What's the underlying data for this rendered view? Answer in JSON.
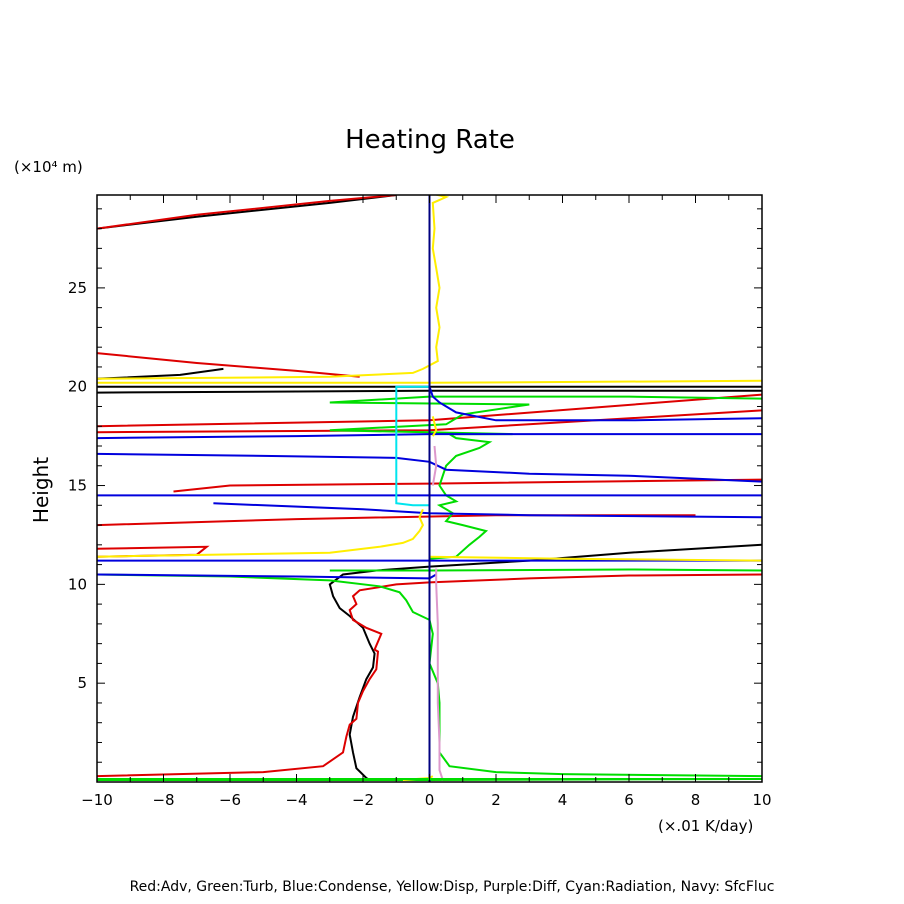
{
  "chart_data": {
    "type": "line",
    "title": "Heating Rate",
    "ylabel": "Height",
    "y_unit": "(×10⁴ m)",
    "x_unit": "(×.01 K/day)",
    "legend_text": "Red:Adv, Green:Turb, Blue:Condense, Yellow:Disp, Purple:Diff, Cyan:Radiation, Navy: SfcFluc",
    "xlim": [
      -10,
      10
    ],
    "ylim": [
      0,
      29.7
    ],
    "x_ticks": [
      -10,
      -8,
      -6,
      -4,
      -2,
      0,
      2,
      4,
      6,
      8,
      10
    ],
    "y_ticks": [
      5,
      10,
      15,
      20,
      25
    ],
    "grid": false,
    "legend_position": "bottom",
    "series": [
      {
        "color": "#000000",
        "points": [
          [
            -1.8,
            0.1
          ],
          [
            -1.9,
            0.2
          ],
          [
            -2.2,
            0.7
          ],
          [
            -2.3,
            1.5
          ],
          [
            -2.4,
            2.4
          ],
          [
            -2.3,
            3.3
          ],
          [
            -2.1,
            4.3
          ],
          [
            -1.9,
            5.2
          ],
          [
            -1.7,
            5.8
          ],
          [
            -1.65,
            6.5
          ],
          [
            -1.8,
            7.0
          ],
          [
            -2.0,
            7.8
          ],
          [
            -2.4,
            8.4
          ],
          [
            -2.7,
            8.8
          ],
          [
            -2.9,
            9.4
          ],
          [
            -3.0,
            10.0
          ],
          [
            -2.6,
            10.5
          ],
          [
            -1.6,
            10.7
          ],
          [
            0,
            10.9
          ],
          [
            3,
            11.2
          ],
          [
            6,
            11.6
          ],
          [
            10,
            12.0
          ]
        ]
      },
      {
        "color": "#000000",
        "points": [
          [
            -10,
            20.4
          ],
          [
            -7.5,
            20.6
          ],
          [
            -6.2,
            20.9
          ]
        ]
      },
      {
        "color": "#000000",
        "points": [
          [
            -10,
            28.0
          ],
          [
            -7,
            28.6
          ],
          [
            -3,
            29.3
          ],
          [
            -1,
            29.7
          ]
        ]
      },
      {
        "color": "#000000",
        "points": [
          [
            -10,
            20.0
          ],
          [
            0,
            20.0
          ],
          [
            10,
            20.0
          ]
        ]
      },
      {
        "color": "#000000",
        "points": [
          [
            -10,
            19.7
          ],
          [
            0,
            19.8
          ],
          [
            10,
            19.8
          ]
        ]
      },
      {
        "color": "#dd0000",
        "points": [
          [
            -10,
            0.3
          ],
          [
            -5,
            0.5
          ],
          [
            -3.2,
            0.8
          ],
          [
            -2.6,
            1.5
          ],
          [
            -2.5,
            2.3
          ],
          [
            -2.4,
            2.9
          ],
          [
            -2.2,
            3.2
          ],
          [
            -2.15,
            4.0
          ],
          [
            -2.0,
            4.6
          ],
          [
            -1.8,
            5.2
          ],
          [
            -1.6,
            5.7
          ],
          [
            -1.55,
            6.6
          ],
          [
            -1.65,
            6.7
          ],
          [
            -1.45,
            7.5
          ],
          [
            -1.9,
            7.8
          ],
          [
            -2.3,
            8.2
          ],
          [
            -2.4,
            8.7
          ],
          [
            -2.2,
            9.0
          ],
          [
            -2.3,
            9.4
          ],
          [
            -2.1,
            9.7
          ],
          [
            -1.0,
            10.0
          ],
          [
            0,
            10.1
          ],
          [
            3,
            10.3
          ],
          [
            6,
            10.45
          ],
          [
            10,
            10.5
          ]
        ]
      },
      {
        "color": "#dd0000",
        "points": [
          [
            -10,
            11.8
          ],
          [
            -6.7,
            11.9
          ],
          [
            -7.0,
            11.5
          ],
          [
            -10,
            11.4
          ]
        ]
      },
      {
        "color": "#dd0000",
        "points": [
          [
            -10,
            13.0
          ],
          [
            -4,
            13.3
          ],
          [
            2,
            13.5
          ],
          [
            8,
            13.5
          ]
        ]
      },
      {
        "color": "#dd0000",
        "points": [
          [
            -7.7,
            14.7
          ],
          [
            -6,
            15.0
          ],
          [
            0,
            15.1
          ],
          [
            10,
            15.3
          ]
        ]
      },
      {
        "color": "#dd0000",
        "points": [
          [
            -10,
            17.7
          ],
          [
            0,
            17.8
          ],
          [
            10,
            18.8
          ]
        ]
      },
      {
        "color": "#dd0000",
        "points": [
          [
            -10,
            18.0
          ],
          [
            0,
            18.3
          ],
          [
            10,
            19.6
          ]
        ]
      },
      {
        "color": "#dd0000",
        "points": [
          [
            -10,
            21.7
          ],
          [
            -7,
            21.2
          ],
          [
            -4,
            20.8
          ],
          [
            -2.1,
            20.5
          ]
        ]
      },
      {
        "color": "#dd0000",
        "points": [
          [
            -10,
            28.0
          ],
          [
            -7,
            28.7
          ],
          [
            -3,
            29.4
          ],
          [
            -1,
            29.7
          ]
        ]
      },
      {
        "color": "#00dd00",
        "points": [
          [
            -10,
            0.1
          ],
          [
            0,
            0.1
          ],
          [
            10,
            0.15
          ]
        ]
      },
      {
        "color": "#00dd00",
        "points": [
          [
            10,
            0.3
          ],
          [
            4,
            0.4
          ],
          [
            2,
            0.5
          ],
          [
            0.6,
            0.8
          ],
          [
            0.3,
            1.5
          ],
          [
            0.3,
            4.0
          ],
          [
            0.25,
            5.0
          ],
          [
            0,
            6.0
          ],
          [
            0.1,
            7.5
          ],
          [
            0,
            8.2
          ],
          [
            -0.5,
            8.6
          ],
          [
            -0.7,
            9.2
          ],
          [
            -0.9,
            9.6
          ],
          [
            -1.5,
            9.9
          ],
          [
            -3,
            10.2
          ],
          [
            -6,
            10.4
          ],
          [
            -10,
            10.5
          ]
        ]
      },
      {
        "color": "#00dd00",
        "points": [
          [
            -3,
            10.7
          ],
          [
            0,
            10.7
          ],
          [
            6,
            10.75
          ],
          [
            10,
            10.7
          ]
        ]
      },
      {
        "color": "#00dd00",
        "points": [
          [
            0,
            11.3
          ],
          [
            0.8,
            11.4
          ],
          [
            1.2,
            12.0
          ],
          [
            1.5,
            12.4
          ],
          [
            1.7,
            12.7
          ],
          [
            1.0,
            13.0
          ],
          [
            0.5,
            13.2
          ],
          [
            0.7,
            13.6
          ],
          [
            0.3,
            14.0
          ],
          [
            0.8,
            14.2
          ],
          [
            0.5,
            14.5
          ],
          [
            0.3,
            15.0
          ],
          [
            0.5,
            16.0
          ],
          [
            0.8,
            16.5
          ],
          [
            1.5,
            16.9
          ],
          [
            1.8,
            17.2
          ],
          [
            0.8,
            17.4
          ],
          [
            0.6,
            17.6
          ],
          [
            2.5,
            17.6
          ],
          [
            -3,
            17.8
          ],
          [
            0.5,
            18.1
          ],
          [
            1,
            18.6
          ],
          [
            3,
            19.1
          ],
          [
            -3,
            19.2
          ],
          [
            0,
            19.5
          ],
          [
            6,
            19.5
          ],
          [
            10,
            19.4
          ]
        ]
      },
      {
        "color": "#0000dd",
        "points": [
          [
            10,
            17.6
          ],
          [
            4,
            17.6
          ],
          [
            0,
            17.6
          ],
          [
            -4,
            17.5
          ],
          [
            -10,
            17.4
          ]
        ]
      },
      {
        "color": "#0000dd",
        "points": [
          [
            10,
            18.4
          ],
          [
            6,
            18.3
          ],
          [
            2,
            18.3
          ],
          [
            0.8,
            18.7
          ],
          [
            0.3,
            19.2
          ],
          [
            0.1,
            19.5
          ],
          [
            0,
            20.0
          ]
        ]
      },
      {
        "color": "#0000dd",
        "points": [
          [
            -10,
            16.6
          ],
          [
            -5,
            16.5
          ],
          [
            -1,
            16.4
          ],
          [
            0,
            16.2
          ],
          [
            0.5,
            15.8
          ],
          [
            3,
            15.6
          ],
          [
            6,
            15.5
          ],
          [
            10,
            15.2
          ]
        ]
      },
      {
        "color": "#0000dd",
        "points": [
          [
            -10,
            14.5
          ],
          [
            0,
            14.5
          ],
          [
            10,
            14.5
          ]
        ]
      },
      {
        "color": "#0000dd",
        "points": [
          [
            -6.5,
            14.1
          ],
          [
            -2,
            13.8
          ],
          [
            0,
            13.6
          ],
          [
            3,
            13.5
          ],
          [
            10,
            13.4
          ]
        ]
      },
      {
        "color": "#0000dd",
        "points": [
          [
            -10,
            11.2
          ],
          [
            0,
            11.2
          ],
          [
            10,
            11.2
          ]
        ]
      },
      {
        "color": "#0000dd",
        "points": [
          [
            -10,
            10.5
          ],
          [
            -4,
            10.4
          ],
          [
            0,
            10.3
          ],
          [
            0.2,
            10.5
          ]
        ]
      },
      {
        "color": "#ffee00",
        "points": [
          [
            -1.2,
            29.8
          ],
          [
            0,
            29.8
          ],
          [
            0.5,
            29.6
          ],
          [
            0.1,
            29.3
          ],
          [
            0.15,
            28.0
          ],
          [
            0.1,
            27.0
          ],
          [
            0.2,
            26.0
          ],
          [
            0.3,
            25.0
          ],
          [
            0.2,
            24.0
          ],
          [
            0.3,
            23.0
          ],
          [
            0.2,
            22.0
          ],
          [
            0.25,
            21.3
          ],
          [
            -0.2,
            20.9
          ],
          [
            -0.5,
            20.7
          ],
          [
            -3,
            20.5
          ],
          [
            -10,
            20.4
          ]
        ]
      },
      {
        "color": "#ffee00",
        "points": [
          [
            -10,
            20.2
          ],
          [
            0,
            20.2
          ],
          [
            10,
            20.3
          ]
        ]
      },
      {
        "color": "#ffee00",
        "points": [
          [
            -10,
            11.4
          ],
          [
            -3,
            11.6
          ],
          [
            -1.5,
            11.9
          ],
          [
            -0.8,
            12.1
          ],
          [
            -0.5,
            12.3
          ],
          [
            -0.3,
            12.7
          ],
          [
            -0.2,
            13.0
          ],
          [
            -0.3,
            13.4
          ],
          [
            -0.2,
            13.8
          ]
        ]
      },
      {
        "color": "#ffee00",
        "points": [
          [
            0,
            11.4
          ],
          [
            4,
            11.3
          ],
          [
            10,
            11.2
          ]
        ]
      },
      {
        "color": "#ffee00",
        "points": [
          [
            -0.8,
            0.1
          ],
          [
            -0.4,
            0.15
          ],
          [
            0,
            0.2
          ],
          [
            0.1,
            0.3
          ]
        ]
      },
      {
        "color": "#ffee00",
        "points": [
          [
            0.1,
            18.5
          ],
          [
            0.2,
            17.8
          ],
          [
            0.1,
            17.5
          ]
        ]
      },
      {
        "color": "#dd99cc",
        "points": [
          [
            0.4,
            0.1
          ],
          [
            0.3,
            0.6
          ],
          [
            0.3,
            2.0
          ],
          [
            0.25,
            4.0
          ],
          [
            0.25,
            6.0
          ],
          [
            0.25,
            8.0
          ],
          [
            0.2,
            10.0
          ],
          [
            0.2,
            10.8
          ]
        ]
      },
      {
        "color": "#dd99cc",
        "points": [
          [
            0.1,
            15.0
          ],
          [
            0.2,
            16.0
          ],
          [
            0.15,
            17.0
          ]
        ]
      },
      {
        "color": "#00e5ee",
        "points": [
          [
            0,
            20.0
          ],
          [
            -1.0,
            20.0
          ],
          [
            -1.0,
            18.0
          ],
          [
            -1.0,
            16.0
          ],
          [
            -1.0,
            14.1
          ],
          [
            -0.5,
            14.0
          ],
          [
            0,
            14.0
          ]
        ]
      },
      {
        "color": "#000080",
        "points": [
          [
            0,
            0
          ],
          [
            0,
            29.8
          ]
        ]
      },
      {
        "color": "#00dd00",
        "points": [
          [
            -10,
            0.15
          ],
          [
            10,
            0.15
          ]
        ]
      }
    ]
  }
}
